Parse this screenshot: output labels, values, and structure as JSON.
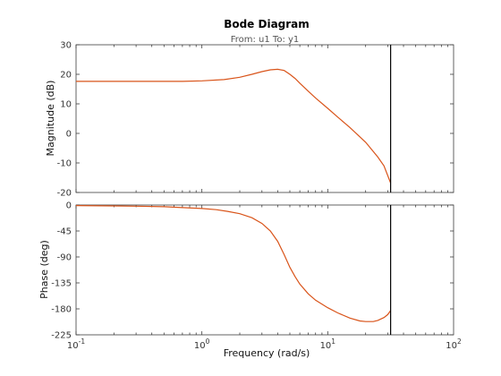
{
  "chart_data": {
    "type": "line",
    "title": "Bode Diagram",
    "subtitle": "From: u1  To: y1",
    "xlabel": "Frequency  (rad/s)",
    "xscale": "log",
    "xlim": [
      0.1,
      100
    ],
    "x_ticks": [
      {
        "value": 0.1,
        "base": "10",
        "exp": "-1"
      },
      {
        "value": 1,
        "base": "10",
        "exp": "0"
      },
      {
        "value": 10,
        "base": "10",
        "exp": "1"
      },
      {
        "value": 100,
        "base": "10",
        "exp": "2"
      }
    ],
    "cursor_x": 31.6,
    "line_color": "#d9541a",
    "cursor_color": "#000000",
    "grid": false,
    "magnitude": {
      "ylabel": "Magnitude (dB)",
      "ylim": [
        -20,
        30
      ],
      "y_ticks": [
        "30",
        "20",
        "10",
        "0",
        "-10",
        "-20"
      ],
      "y_tick_values": [
        30,
        20,
        10,
        0,
        -10,
        -20
      ],
      "x": [
        0.1,
        0.3,
        0.7,
        1.0,
        1.5,
        2.0,
        2.5,
        3.0,
        3.5,
        4.0,
        4.5,
        5.0,
        5.5,
        6.0,
        7.0,
        8.0,
        10.0,
        12.0,
        15.0,
        20.0,
        25.0,
        28.0,
        31.6
      ],
      "values": [
        17.6,
        17.6,
        17.6,
        17.8,
        18.2,
        19.0,
        20.0,
        20.9,
        21.5,
        21.7,
        21.3,
        20.0,
        18.6,
        17.0,
        14.3,
        12.0,
        8.5,
        5.5,
        2.0,
        -3.0,
        -8.0,
        -11.0,
        -16.8
      ]
    },
    "phase": {
      "ylabel": "Phase (deg)",
      "ylim": [
        -225,
        0
      ],
      "y_ticks": [
        "0",
        "-45",
        "-90",
        "-135",
        "-180",
        "-225"
      ],
      "y_tick_values": [
        0,
        -45,
        -90,
        -135,
        -180,
        -225
      ],
      "x": [
        0.1,
        0.2,
        0.3,
        0.5,
        0.7,
        1.0,
        1.3,
        1.6,
        2.0,
        2.5,
        3.0,
        3.5,
        4.0,
        4.5,
        5.0,
        5.5,
        6.0,
        7.0,
        8.0,
        10.0,
        12.0,
        15.0,
        18.0,
        20.0,
        23.0,
        25.0,
        28.0,
        30.0,
        31.6
      ],
      "values": [
        -1,
        -1.5,
        -2,
        -3,
        -4.5,
        -6,
        -8,
        -11,
        -15,
        -22,
        -32,
        -45,
        -63,
        -86,
        -108,
        -124,
        -137,
        -154,
        -165,
        -178,
        -187,
        -196,
        -201,
        -202,
        -202,
        -200,
        -195,
        -190,
        -183
      ]
    }
  }
}
